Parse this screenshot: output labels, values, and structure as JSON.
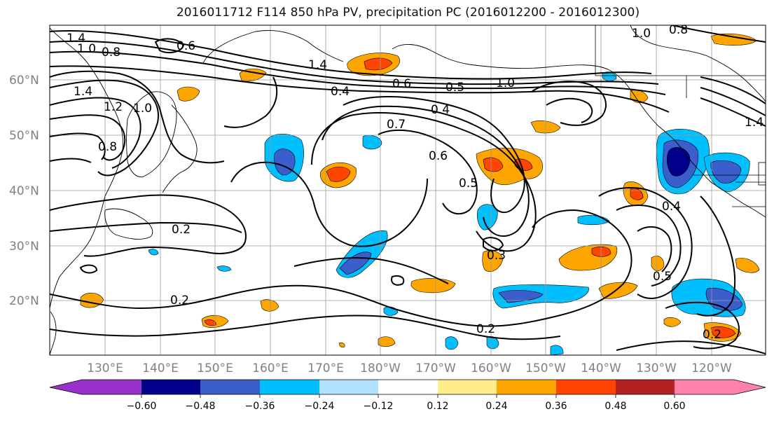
{
  "title": "2016011712 F114 850 hPa PV, precipitation PC (2016012200 - 2016012300)",
  "lat_labels": [
    "60°N",
    "50°N",
    "40°N",
    "30°N",
    "20°N"
  ],
  "lon_labels": [
    "130°E",
    "140°E",
    "150°E",
    "160°E",
    "170°E",
    "180°W",
    "170°W",
    "160°W",
    "150°W",
    "140°W",
    "130°W",
    "120°W"
  ],
  "contour_labels": [
    "1.4",
    "1.0",
    "0.8",
    "0.6",
    "1.4",
    "1.4",
    "1.2",
    "1.0",
    "0.8",
    "0.2",
    "0.2",
    "0.4",
    "0.6",
    "0.5",
    "1.0",
    "0.4",
    "0.7",
    "0.6",
    "0.5",
    "0.3",
    "0.2",
    "0.5",
    "0.2",
    "1.0",
    "0.8",
    "1.4",
    "0.4"
  ],
  "colorbar": {
    "ticks": [
      "−0.60",
      "−0.48",
      "−0.36",
      "−0.24",
      "−0.12",
      "0.12",
      "0.24",
      "0.36",
      "0.48",
      "0.60"
    ],
    "colors": [
      "#9932cc",
      "#00008b",
      "#3a5fcd",
      "#00bfff",
      "#b0e2ff",
      "#ffffff",
      "#ffec8b",
      "#ffa500",
      "#ff4500",
      "#b22222",
      "#ff82ab"
    ]
  }
}
